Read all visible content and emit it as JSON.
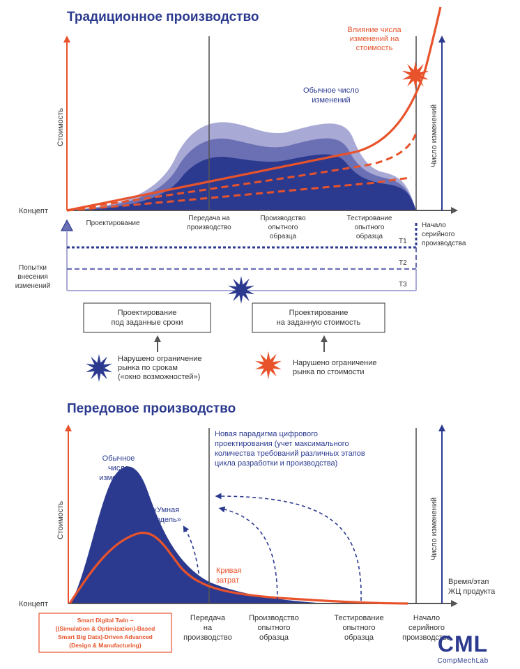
{
  "colors": {
    "blue": "#2b3a8f",
    "blue_mid": "#6b6fb3",
    "blue_light": "#a9a9d6",
    "orange": "#e8532b",
    "gray": "#444444"
  },
  "traditional": {
    "title": "Традиционное производство",
    "y_left_label": "Стоимость",
    "y_right_label": "Число изменений",
    "origin_label": "Концепт",
    "cost_change_label": [
      "Влияние числа",
      "изменений на",
      "стоимость"
    ],
    "changes_label": [
      "Обычное число",
      "изменений"
    ],
    "phases": [
      {
        "lines": [
          "Проектирование"
        ]
      },
      {
        "lines": [
          "Передача  на",
          "производство"
        ]
      },
      {
        "lines": [
          "Производство",
          "опытного",
          "образца"
        ]
      },
      {
        "lines": [
          "Тестирование",
          "опытного",
          "образца"
        ]
      }
    ],
    "serial_start": [
      "Начало",
      "серийного",
      "производства"
    ],
    "attempts_label": [
      "Попытки",
      "внесения",
      "изменений"
    ],
    "deadlines": [
      "T1",
      "T2",
      "T3"
    ],
    "box_time": [
      "Проектирование",
      "под заданные сроки"
    ],
    "box_cost": [
      "Проектирование",
      "на заданную стоимость"
    ],
    "violation_time": [
      "Нарушено ограничение",
      "рынка по срокам",
      "(«окно возможностей»)"
    ],
    "violation_cost": [
      "Нарушено ограничение",
      "рынка по стоимости"
    ]
  },
  "advanced": {
    "title": "Передовое производство",
    "y_left_label": "Стоимость",
    "y_right_label": "Число изменений",
    "origin_label": "Концепт",
    "x_axis_label": [
      "Время/этап",
      "ЖЦ продукта"
    ],
    "changes_label": [
      "Обычное",
      "число",
      "изменений"
    ],
    "smart_model": [
      "«Умная",
      "модель»"
    ],
    "cost_curve_label": [
      "Кривая",
      "затрат"
    ],
    "paradigm": [
      "Новая парадигма цифрового",
      "проектирования (учет максимального",
      "количества требований различных этапов",
      "цикла разработки и производства)"
    ],
    "phases": [
      {
        "lines": [
          "Передача",
          "на",
          "производство"
        ]
      },
      {
        "lines": [
          "Производство",
          "опытного",
          "образца"
        ]
      },
      {
        "lines": [
          "Тестирование",
          "опытного",
          "образца"
        ]
      },
      {
        "lines": [
          "Начало",
          "серийного",
          "производства"
        ]
      }
    ],
    "digital_twin": [
      "Smart Digital Twin –",
      "[(Simulation & Optimization)-Based",
      "Smart Big Data]-Driven Advanced",
      "(Design & Manufacturing)"
    ]
  },
  "logo": {
    "text": "CML",
    "subtitle": "CompMechLab"
  }
}
